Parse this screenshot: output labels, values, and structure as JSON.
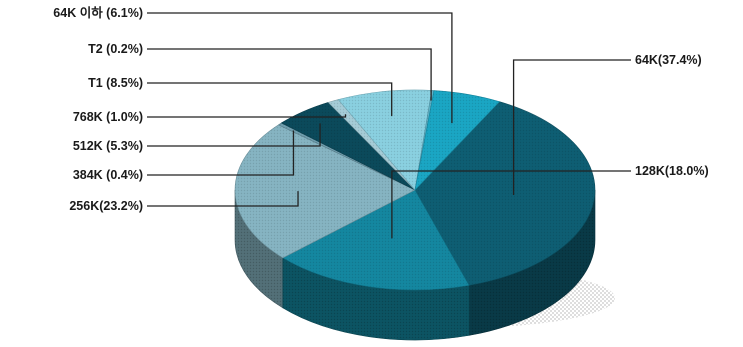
{
  "chart_data": {
    "type": "pie",
    "title": "",
    "legend": "none",
    "slices": [
      {
        "label": "64K",
        "value": 37.4,
        "text": "64K(37.4%)",
        "color": "#0e5e73"
      },
      {
        "label": "128K",
        "value": 18.0,
        "text": "128K(18.0%)",
        "color": "#1487a0"
      },
      {
        "label": "256K",
        "value": 23.2,
        "text": "256K(23.2%)",
        "color": "#86b4c2"
      },
      {
        "label": "384K",
        "value": 0.4,
        "text": "384K (0.4%)",
        "color": "#6f9eae"
      },
      {
        "label": "512K",
        "value": 5.3,
        "text": "512K (5.3%)",
        "color": "#0b4a5b"
      },
      {
        "label": "768K",
        "value": 1.0,
        "text": "768K (1.0%)",
        "color": "#a5ccd7"
      },
      {
        "label": "T1",
        "value": 8.5,
        "text": "T1 (8.5%)",
        "color": "#8ad0e0"
      },
      {
        "label": "T2",
        "value": 0.2,
        "text": "T2 (0.2%)",
        "color": "#5fb3c8"
      },
      {
        "label": "64K 이하",
        "value": 6.1,
        "text": "64K 이하 (6.1%)",
        "color": "#1aa6c4"
      }
    ]
  }
}
